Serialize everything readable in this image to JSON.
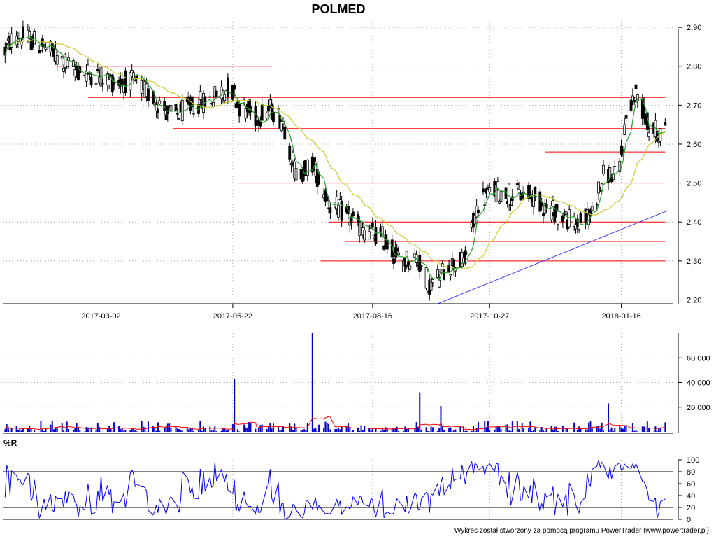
{
  "chart_data": [
    {
      "type": "candlestick",
      "title": "POLMED",
      "x_tick_labels": [
        "2017-03-02",
        "2017-05-22",
        "2017-08-16",
        "2017-10-27",
        "2018-01-16"
      ],
      "y_tick_labels": [
        "2,90",
        "2,80",
        "2,70",
        "2,60",
        "2,50",
        "2,40",
        "2,30",
        "2,20"
      ],
      "ylim": [
        2.19,
        2.92
      ],
      "grid": "dotted",
      "support_resistance_lines": [
        {
          "level": 2.8,
          "from": "2017-02-02",
          "to": "2017-06-15",
          "color": "#ff0000"
        },
        {
          "level": 2.72,
          "from": "2017-02-22",
          "to": "2018-02-12",
          "color": "#ff0000"
        },
        {
          "level": 2.64,
          "from": "2017-04-15",
          "to": "2018-02-12",
          "color": "#ff0000"
        },
        {
          "level": 2.58,
          "from": "2017-11-30",
          "to": "2018-02-12",
          "color": "#ff0000"
        },
        {
          "level": 2.5,
          "from": "2017-05-25",
          "to": "2018-02-12",
          "color": "#ff0000"
        },
        {
          "level": 2.4,
          "from": "2017-07-20",
          "to": "2018-02-12",
          "color": "#ff0000"
        },
        {
          "level": 2.35,
          "from": "2017-07-30",
          "to": "2018-02-12",
          "color": "#ff0000"
        },
        {
          "level": 2.3,
          "from": "2017-07-15",
          "to": "2018-02-12",
          "color": "#ff0000"
        }
      ],
      "trend_line": {
        "from": [
          "2017-09-25",
          2.19
        ],
        "to": [
          "2018-02-14",
          2.43
        ],
        "color": "#4040ff"
      },
      "moving_averages": [
        {
          "color": "#2a9d2a",
          "period": "short"
        },
        {
          "color": "#cccc33",
          "period": "long"
        }
      ],
      "series_shape": [
        [
          "2017-01-02",
          2.84
        ],
        [
          "2017-01-08",
          2.88
        ],
        [
          "2017-01-16",
          2.87
        ],
        [
          "2017-01-26",
          2.85
        ],
        [
          "2017-02-04",
          2.82
        ],
        [
          "2017-02-14",
          2.79
        ],
        [
          "2017-02-26",
          2.78
        ],
        [
          "2017-03-10",
          2.76
        ],
        [
          "2017-03-22",
          2.76
        ],
        [
          "2017-04-03",
          2.72
        ],
        [
          "2017-04-15",
          2.67
        ],
        [
          "2017-04-28",
          2.7
        ],
        [
          "2017-05-10",
          2.72
        ],
        [
          "2017-05-20",
          2.75
        ],
        [
          "2017-05-26",
          2.7
        ],
        [
          "2017-06-05",
          2.67
        ],
        [
          "2017-06-15",
          2.69
        ],
        [
          "2017-06-22",
          2.66
        ],
        [
          "2017-06-30",
          2.52
        ],
        [
          "2017-07-10",
          2.55
        ],
        [
          "2017-07-20",
          2.45
        ],
        [
          "2017-07-30",
          2.42
        ],
        [
          "2017-08-10",
          2.38
        ],
        [
          "2017-08-22",
          2.36
        ],
        [
          "2017-09-02",
          2.3
        ],
        [
          "2017-09-12",
          2.31
        ],
        [
          "2017-09-20",
          2.24
        ],
        [
          "2017-09-26",
          2.26
        ],
        [
          "2017-10-02",
          2.29
        ],
        [
          "2017-10-12",
          2.3
        ],
        [
          "2017-10-20",
          2.45
        ],
        [
          "2017-10-30",
          2.48
        ],
        [
          "2017-11-10",
          2.47
        ],
        [
          "2017-11-22",
          2.47
        ],
        [
          "2017-11-30",
          2.44
        ],
        [
          "2017-12-10",
          2.42
        ],
        [
          "2017-12-20",
          2.39
        ],
        [
          "2017-12-28",
          2.42
        ],
        [
          "2018-01-06",
          2.53
        ],
        [
          "2018-01-14",
          2.51
        ],
        [
          "2018-01-20",
          2.7
        ],
        [
          "2018-01-26",
          2.73
        ],
        [
          "2018-02-02",
          2.64
        ],
        [
          "2018-02-08",
          2.63
        ]
      ]
    },
    {
      "type": "bar",
      "name": "volume",
      "y_tick_labels": [
        "60 000",
        "40 000",
        "20 000"
      ],
      "ylim": [
        0,
        80000
      ],
      "bar_color": "#0000cc",
      "average_line_color": "#ff0000",
      "notable_spikes": [
        {
          "x": "2017-05-24",
          "value": 43000
        },
        {
          "x": "2017-07-11",
          "value": 80000
        },
        {
          "x": "2017-09-15",
          "value": 32000
        },
        {
          "x": "2017-09-28",
          "value": 21000
        },
        {
          "x": "2018-01-08",
          "value": 23000
        }
      ]
    },
    {
      "type": "line",
      "title": "%R",
      "y_tick_labels": [
        "100",
        "80",
        "60",
        "40",
        "20",
        "0"
      ],
      "ylim": [
        0,
        100
      ],
      "reference_levels": [
        80,
        20
      ],
      "line_color": "#0000ff"
    }
  ],
  "footer": {
    "credit": "Wykres został stworzony za pomocą programu PowerTrader (www.powertrader.pl)"
  }
}
